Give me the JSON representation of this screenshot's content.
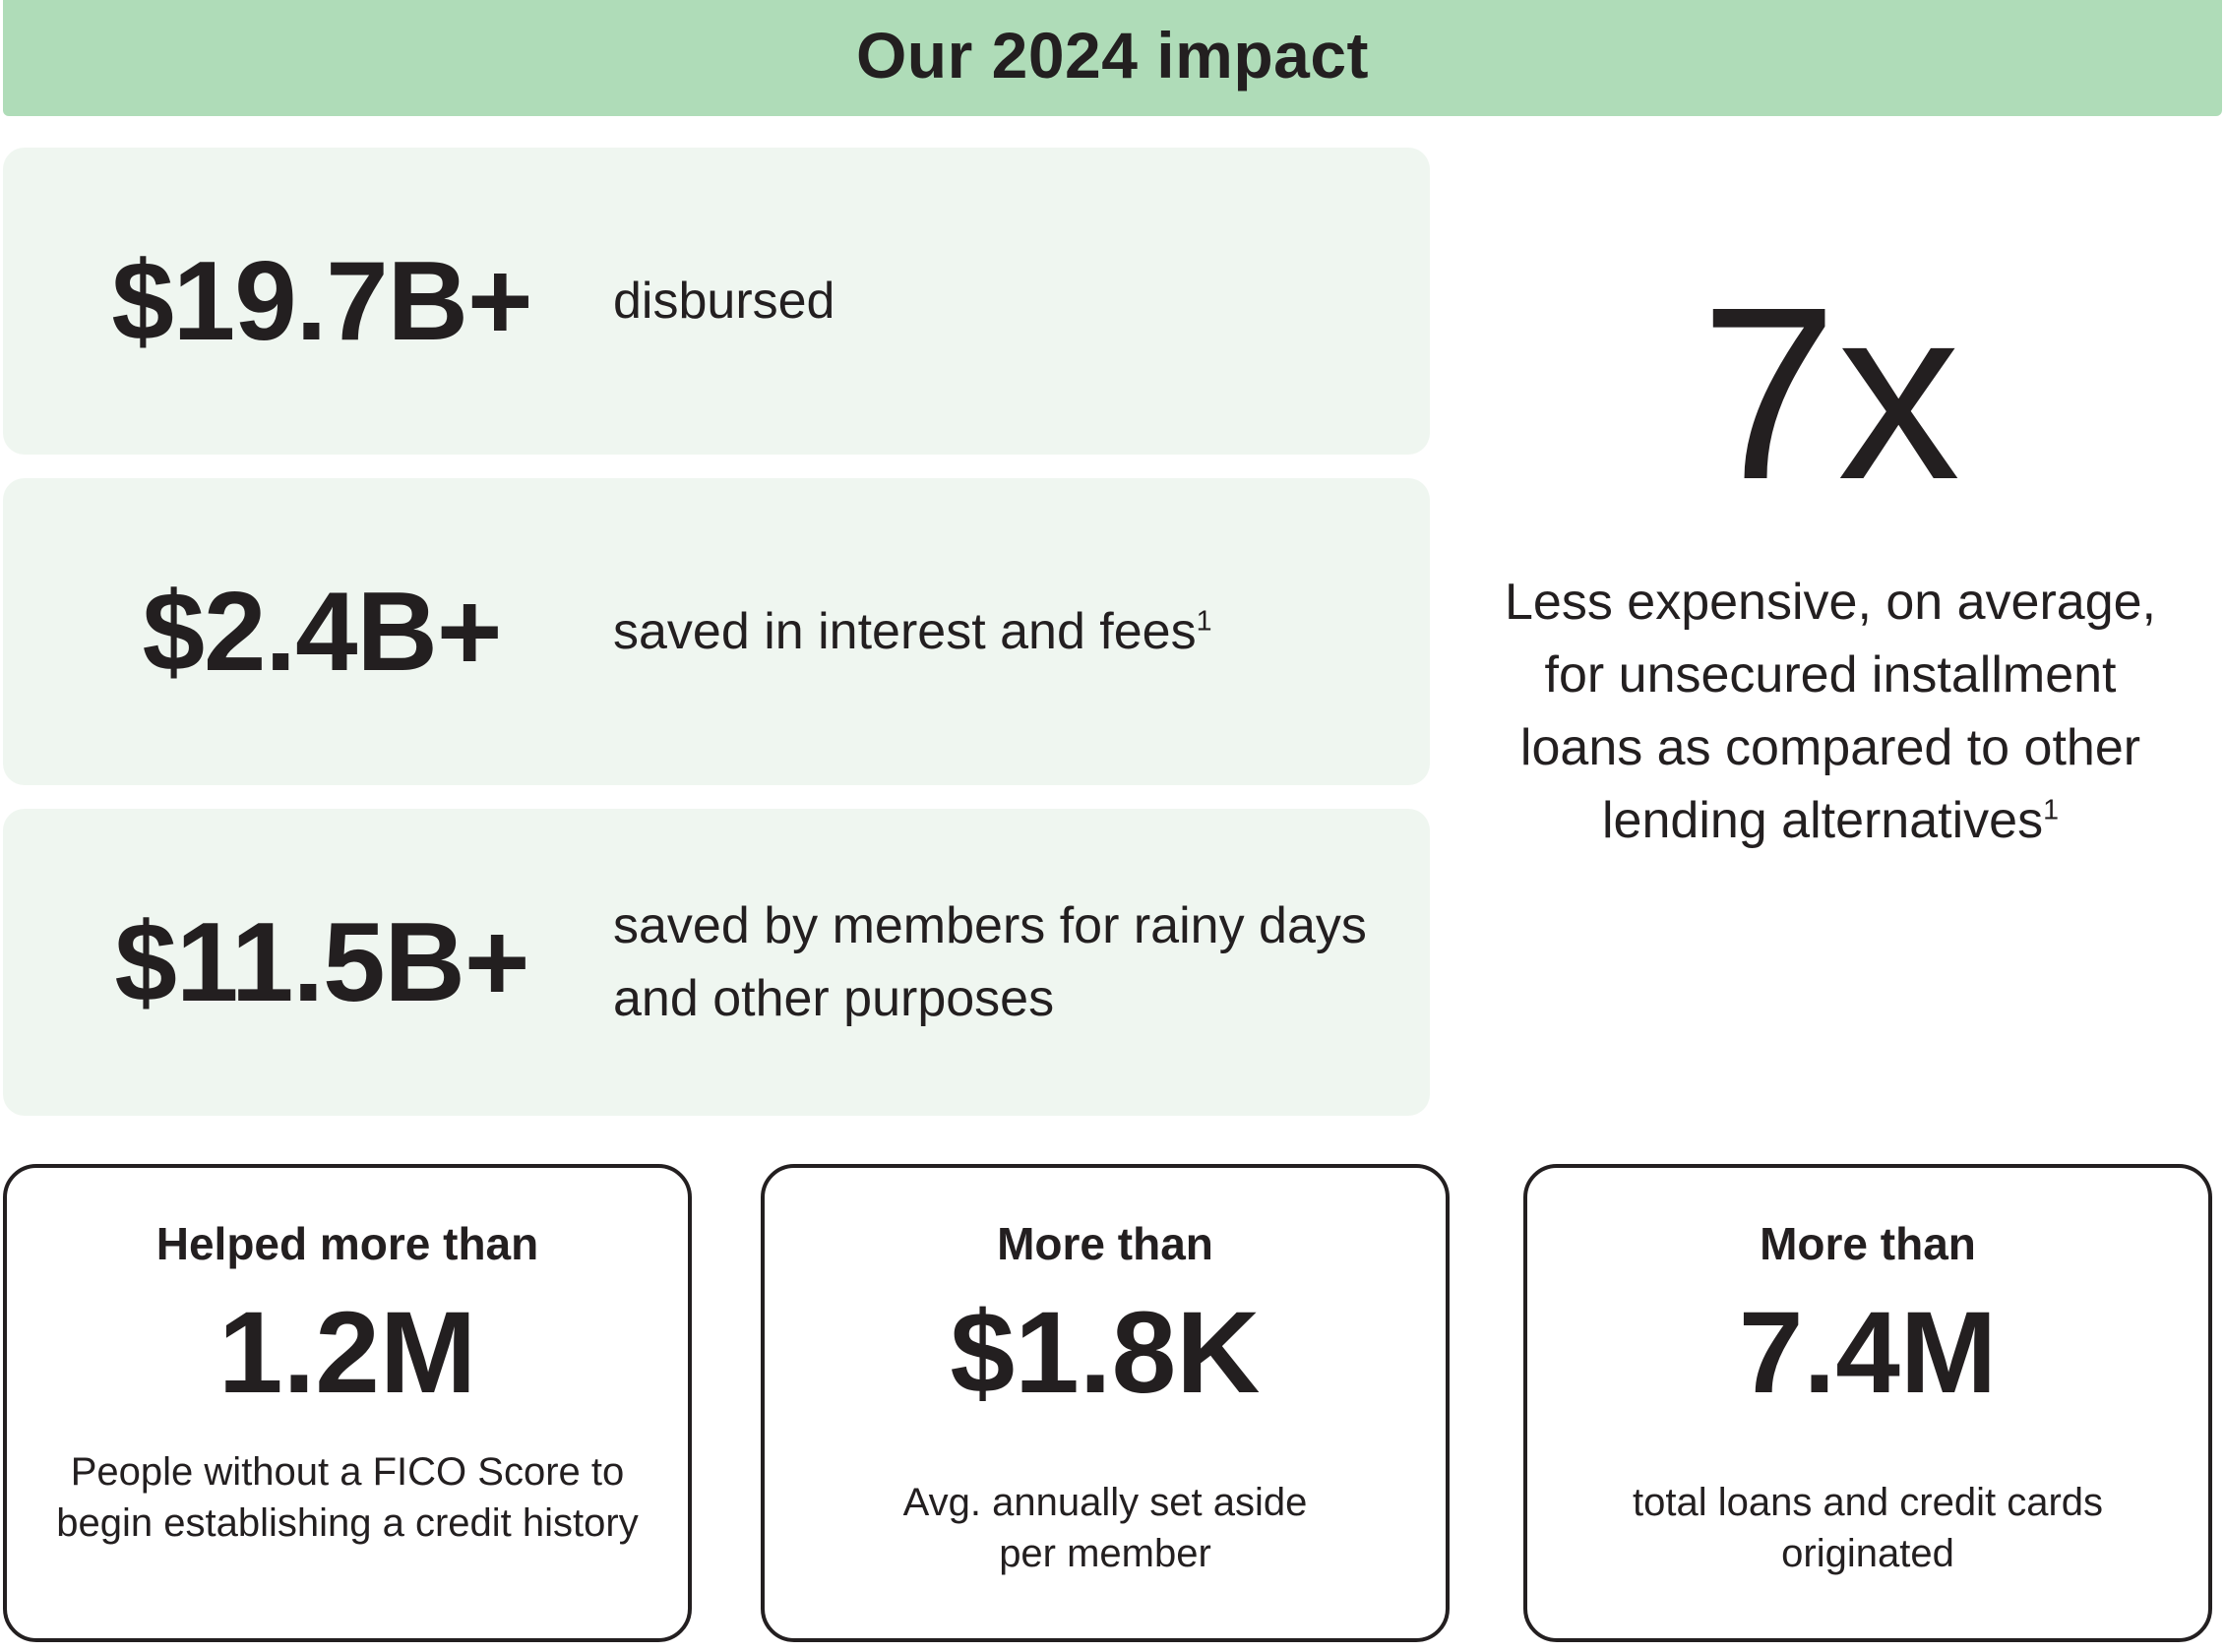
{
  "header": {
    "title": "Our 2024 impact"
  },
  "stats": [
    {
      "value": "$19.7B+",
      "description": "disbursed",
      "footnote": ""
    },
    {
      "value": "$2.4B+",
      "description": "saved in interest and fees",
      "footnote": "1"
    },
    {
      "value": "$11.5B+",
      "description": "saved by members for rainy days and other purposes",
      "footnote": ""
    }
  ],
  "highlight": {
    "value": "7x",
    "description": "Less expensive, on average, for unsecured installment loans as compared to other lending alternatives",
    "footnote": "1"
  },
  "cards": [
    {
      "lead": "Helped more than",
      "value": "1.2M",
      "description": "People without a FICO Score to begin establishing a credit history"
    },
    {
      "lead": "More than",
      "value": "$1.8K",
      "description": "Avg. annually set aside per member"
    },
    {
      "lead": "More than",
      "value": "7.4M",
      "description": "total loans and credit cards originated"
    }
  ],
  "colors": {
    "banner": "#afdcb8",
    "panel": "#eff6f0",
    "text": "#231f20"
  }
}
